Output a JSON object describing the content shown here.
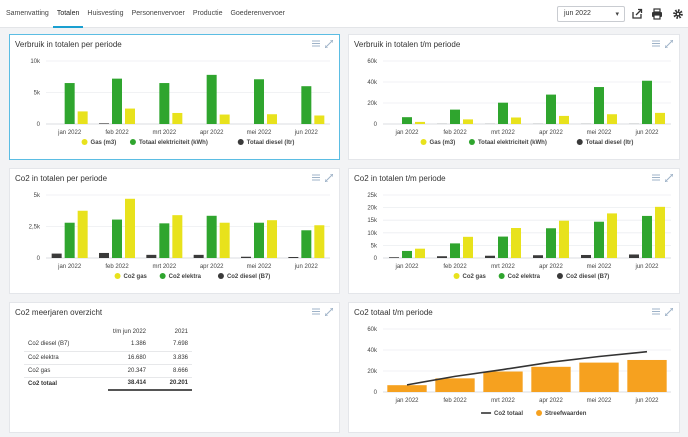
{
  "nav": {
    "tabs": [
      {
        "label": "Samenvatting"
      },
      {
        "label": "Totalen"
      },
      {
        "label": "Huisvesting"
      },
      {
        "label": "Personenvervoer"
      },
      {
        "label": "Productie"
      },
      {
        "label": "Goederenvervoer"
      }
    ],
    "active_tab": "Totalen"
  },
  "toolbar": {
    "period_value": "jun 2022",
    "export_icon": "share-icon",
    "print_icon": "printer-icon",
    "settings_icon": "gear-icon"
  },
  "colors": {
    "gas": "#e8e21c",
    "elektra": "#2fa52e",
    "diesel": "#3a3a3a",
    "streef": "#f6a11f",
    "line": "#333333",
    "accent": "#1a9fd0"
  },
  "cards": {
    "verbruik_periode": {
      "title": "Verbruik in totalen per periode"
    },
    "verbruik_tm": {
      "title": "Verbruik in totalen t/m periode"
    },
    "co2_periode": {
      "title": "Co2 in totalen per periode"
    },
    "co2_tm": {
      "title": "Co2 in totalen t/m periode"
    },
    "meerjaren": {
      "title": "Co2 meerjaren overzicht"
    },
    "co2_totaal_tm": {
      "title": "Co2 totaal t/m periode"
    }
  },
  "meerjaren_table": {
    "headers": [
      "",
      "t/m jun 2022",
      "2021"
    ],
    "rows": [
      {
        "label": "Co2 diesel (B7)",
        "v1": "1.386",
        "v2": "7.698"
      },
      {
        "label": "Co2 elektra",
        "v1": "16.680",
        "v2": "3.836"
      },
      {
        "label": "Co2 gas",
        "v1": "20.347",
        "v2": "8.666"
      }
    ],
    "total": {
      "label": "Co2 totaal",
      "v1": "38.414",
      "v2": "20.201"
    }
  },
  "chart_data": [
    {
      "id": "verbruik_periode",
      "type": "bar",
      "title": "Verbruik in totalen per periode",
      "categories": [
        "jan 2022",
        "feb 2022",
        "mrt 2022",
        "apr 2022",
        "mei 2022",
        "jun 2022"
      ],
      "series": [
        {
          "name": "Gas (m3)",
          "color_key": "gas",
          "values": [
            2000,
            2450,
            1750,
            1500,
            1550,
            1350
          ]
        },
        {
          "name": "Totaal elektriciteit (kWh)",
          "color_key": "elektra",
          "values": [
            6500,
            7200,
            6500,
            7800,
            7100,
            6000
          ]
        },
        {
          "name": "Totaal diesel (ltr)",
          "color_key": "diesel",
          "values": [
            0,
            100,
            0,
            0,
            0,
            0
          ]
        }
      ],
      "series_order": [
        2,
        1,
        0
      ],
      "yticks": [
        0,
        5000,
        10000
      ],
      "ytick_labels": [
        "0",
        "5k",
        "10k"
      ],
      "ylim": [
        0,
        10000
      ]
    },
    {
      "id": "verbruik_tm",
      "type": "bar",
      "title": "Verbruik in totalen t/m periode",
      "categories": [
        "jan 2022",
        "feb 2022",
        "mrt 2022",
        "apr 2022",
        "mei 2022",
        "jun 2022"
      ],
      "series": [
        {
          "name": "Gas (m3)",
          "color_key": "gas",
          "values": [
            2000,
            4400,
            6200,
            7700,
            9300,
            10600
          ]
        },
        {
          "name": "Totaal elektriciteit (kWh)",
          "color_key": "elektra",
          "values": [
            6500,
            13700,
            20300,
            28000,
            35200,
            41200
          ]
        },
        {
          "name": "Totaal diesel (ltr)",
          "color_key": "diesel",
          "values": [
            0,
            100,
            100,
            100,
            100,
            100
          ]
        }
      ],
      "series_order": [
        2,
        1,
        0
      ],
      "yticks": [
        0,
        20000,
        40000,
        60000
      ],
      "ytick_labels": [
        "0",
        "20k",
        "40k",
        "60k"
      ],
      "ylim": [
        0,
        60000
      ]
    },
    {
      "id": "co2_periode",
      "type": "bar",
      "title": "Co2 in totalen per periode",
      "categories": [
        "jan 2022",
        "feb 2022",
        "mrt 2022",
        "apr 2022",
        "mei 2022",
        "jun 2022"
      ],
      "series": [
        {
          "name": "Co2 gas",
          "color_key": "gas",
          "values": [
            3750,
            4700,
            3400,
            2800,
            3000,
            2600
          ]
        },
        {
          "name": "Co2 elektra",
          "color_key": "elektra",
          "values": [
            2800,
            3050,
            2750,
            3350,
            2800,
            2200
          ]
        },
        {
          "name": "Co2 diesel (B7)",
          "color_key": "diesel",
          "values": [
            350,
            400,
            250,
            250,
            100,
            80
          ]
        }
      ],
      "series_order": [
        2,
        1,
        0
      ],
      "yticks": [
        0,
        2500,
        5000
      ],
      "ytick_labels": [
        "0",
        "2,5k",
        "5k"
      ],
      "ylim": [
        0,
        5000
      ]
    },
    {
      "id": "co2_tm",
      "type": "bar",
      "title": "Co2 in totalen t/m periode",
      "categories": [
        "jan 2022",
        "feb 2022",
        "mrt 2022",
        "apr 2022",
        "mei 2022",
        "jun 2022"
      ],
      "series": [
        {
          "name": "Co2 gas",
          "color_key": "gas",
          "values": [
            3700,
            8400,
            11900,
            14800,
            17700,
            20300
          ]
        },
        {
          "name": "Co2 elektra",
          "color_key": "elektra",
          "values": [
            2800,
            5800,
            8500,
            11800,
            14400,
            16700
          ]
        },
        {
          "name": "Co2 diesel (B7)",
          "color_key": "diesel",
          "values": [
            300,
            700,
            900,
            1100,
            1200,
            1400
          ]
        }
      ],
      "series_order": [
        2,
        1,
        0
      ],
      "yticks": [
        0,
        5000,
        10000,
        15000,
        20000,
        25000
      ],
      "ytick_labels": [
        "0",
        "5k",
        "10k",
        "15k",
        "20k",
        "25k"
      ],
      "ylim": [
        0,
        25000
      ]
    },
    {
      "id": "co2_totaal_tm",
      "type": "bar",
      "title": "Co2 totaal t/m periode",
      "categories": [
        "jan 2022",
        "feb 2022",
        "mrt 2022",
        "apr 2022",
        "mei 2022",
        "jun 2022"
      ],
      "series": [
        {
          "name": "Streefwaarden",
          "color_key": "streef",
          "kind": "bar",
          "values": [
            6500,
            13000,
            19500,
            24000,
            28000,
            30500
          ]
        },
        {
          "name": "Co2 totaal",
          "color_key": "line",
          "kind": "line",
          "values": [
            6800,
            14900,
            21400,
            28400,
            33800,
            38400
          ]
        }
      ],
      "legend_order": [
        1,
        0
      ],
      "yticks": [
        0,
        20000,
        40000,
        60000
      ],
      "ytick_labels": [
        "0",
        "20k",
        "40k",
        "60k"
      ],
      "ylim": [
        0,
        60000
      ]
    }
  ]
}
